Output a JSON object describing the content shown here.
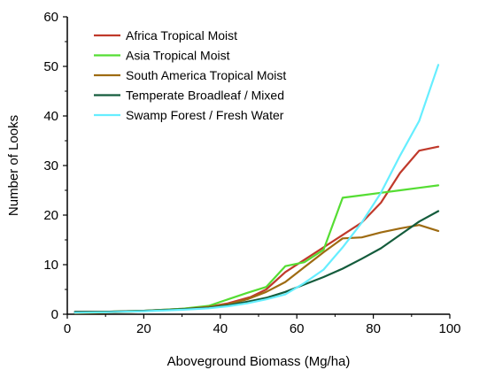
{
  "chart_data": {
    "type": "line",
    "title": "",
    "xlabel": "Aboveground Biomass (Mg/ha)",
    "ylabel": "Number of Looks",
    "xlim": [
      0,
      100
    ],
    "ylim": [
      0,
      60
    ],
    "xticks": [
      "0",
      "20",
      "40",
      "60",
      "80",
      "100"
    ],
    "yticks": [
      "0",
      "10",
      "20",
      "30",
      "40",
      "50",
      "60"
    ],
    "grid": false,
    "legend_position": "top-left",
    "series": [
      {
        "name": "Africa Tropical Moist",
        "color": "#c0392b",
        "points": [
          [
            2,
            0.3
          ],
          [
            10,
            0.4
          ],
          [
            20,
            0.7
          ],
          [
            30,
            1.1
          ],
          [
            37,
            1.5
          ],
          [
            42,
            2.2
          ],
          [
            48,
            3.5
          ],
          [
            52,
            5
          ],
          [
            57,
            8.5
          ],
          [
            62,
            11
          ],
          [
            67,
            13.5
          ],
          [
            72,
            16
          ],
          [
            77,
            18.5
          ],
          [
            82,
            22.5
          ],
          [
            87,
            28.5
          ],
          [
            92,
            33
          ],
          [
            97,
            33.8
          ]
        ]
      },
      {
        "name": "Asia Tropical Moist",
        "color": "#55dd33",
        "points": [
          [
            2,
            0.3
          ],
          [
            10,
            0.5
          ],
          [
            20,
            0.7
          ],
          [
            30,
            1.1
          ],
          [
            37,
            1.7
          ],
          [
            42,
            3
          ],
          [
            47,
            4.3
          ],
          [
            52,
            5.5
          ],
          [
            57,
            9.7
          ],
          [
            62,
            10.5
          ],
          [
            67,
            13
          ],
          [
            72,
            23.5
          ],
          [
            77,
            24
          ],
          [
            82,
            24.5
          ],
          [
            87,
            25
          ],
          [
            92,
            25.5
          ],
          [
            97,
            26
          ]
        ]
      },
      {
        "name": "South America Tropical Moist",
        "color": "#9e6b12",
        "points": [
          [
            2,
            0.2
          ],
          [
            10,
            0.3
          ],
          [
            20,
            0.6
          ],
          [
            30,
            1
          ],
          [
            37,
            1.5
          ],
          [
            42,
            2
          ],
          [
            47,
            3
          ],
          [
            52,
            4.5
          ],
          [
            57,
            6.5
          ],
          [
            62,
            9.5
          ],
          [
            67,
            12.5
          ],
          [
            72,
            15.3
          ],
          [
            77,
            15.5
          ],
          [
            82,
            16.5
          ],
          [
            87,
            17.3
          ],
          [
            92,
            18
          ],
          [
            97,
            16.8
          ]
        ]
      },
      {
        "name": "Temperate Broadleaf / Mixed",
        "color": "#145c3c",
        "points": [
          [
            2,
            0.5
          ],
          [
            10,
            0.5
          ],
          [
            20,
            0.7
          ],
          [
            30,
            1
          ],
          [
            37,
            1.3
          ],
          [
            42,
            1.8
          ],
          [
            47,
            2.5
          ],
          [
            52,
            3.3
          ],
          [
            57,
            4.5
          ],
          [
            62,
            6
          ],
          [
            67,
            7.5
          ],
          [
            72,
            9.2
          ],
          [
            77,
            11.2
          ],
          [
            82,
            13.3
          ],
          [
            87,
            16
          ],
          [
            92,
            18.7
          ],
          [
            97,
            20.8
          ]
        ]
      },
      {
        "name": "Swamp Forest / Fresh Water",
        "color": "#66eeff",
        "points": [
          [
            2,
            0.3
          ],
          [
            10,
            0.4
          ],
          [
            20,
            0.6
          ],
          [
            30,
            0.9
          ],
          [
            37,
            1.2
          ],
          [
            42,
            1.6
          ],
          [
            47,
            2.2
          ],
          [
            52,
            3
          ],
          [
            57,
            4
          ],
          [
            62,
            6.3
          ],
          [
            67,
            9
          ],
          [
            72,
            13.5
          ],
          [
            77,
            18.5
          ],
          [
            82,
            24.5
          ],
          [
            87,
            32
          ],
          [
            92,
            39
          ],
          [
            97,
            50.3
          ]
        ]
      }
    ]
  }
}
